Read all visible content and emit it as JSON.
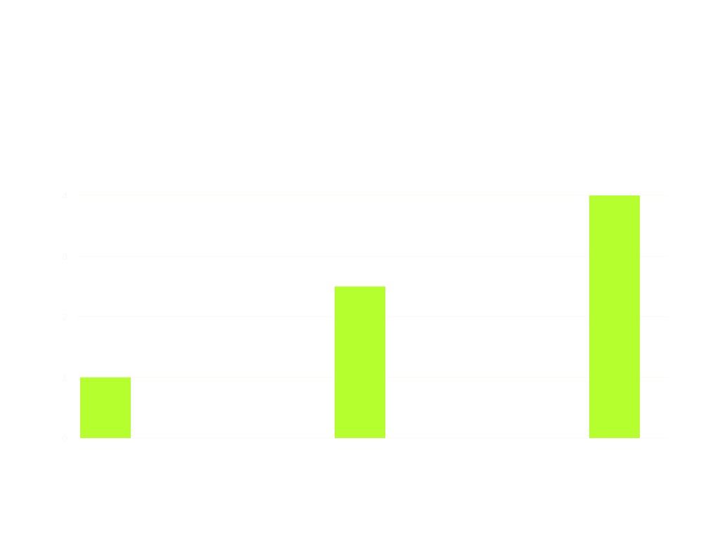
{
  "chart_data": {
    "type": "bar",
    "title": "",
    "subtitle": "",
    "categories": [
      "",
      "",
      ""
    ],
    "values": [
      1,
      2.5,
      4
    ],
    "ylim": [
      0,
      4
    ],
    "yticks": [
      0,
      1,
      2,
      3,
      4
    ],
    "xlabel": "",
    "ylabel": "",
    "grid": true,
    "colors": {
      "bar": "#b6ff2e",
      "grid": "#fdfdf6",
      "text": "#f8fbf0"
    }
  }
}
